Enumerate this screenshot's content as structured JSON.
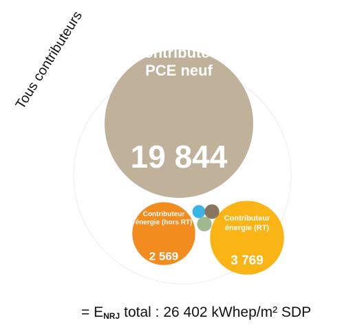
{
  "chart_data": {
    "type": "packed-bubble",
    "title": "Tous contributeurs",
    "categories": [
      [
        "Contributeur",
        "PCE neuf"
      ],
      [
        "Contributeur",
        "énergie (hors RT)"
      ],
      [
        "Contributeur",
        "énergie (RT)"
      ],
      null,
      null,
      null
    ],
    "values": [
      19844,
      2569,
      3769,
      60,
      80,
      80
    ],
    "value_labels": [
      "19 844",
      "2 569",
      "3 769",
      null,
      null,
      null
    ],
    "colors": [
      "#bfb19a",
      "#f28c1e",
      "#fbb416",
      "#3bb4e5",
      "#8a7560",
      "#9fb98e"
    ]
  },
  "footer": {
    "prefix": "= E",
    "subscript": "NRJ",
    "text": "total :  26 402 kWhep/m² SDP"
  }
}
